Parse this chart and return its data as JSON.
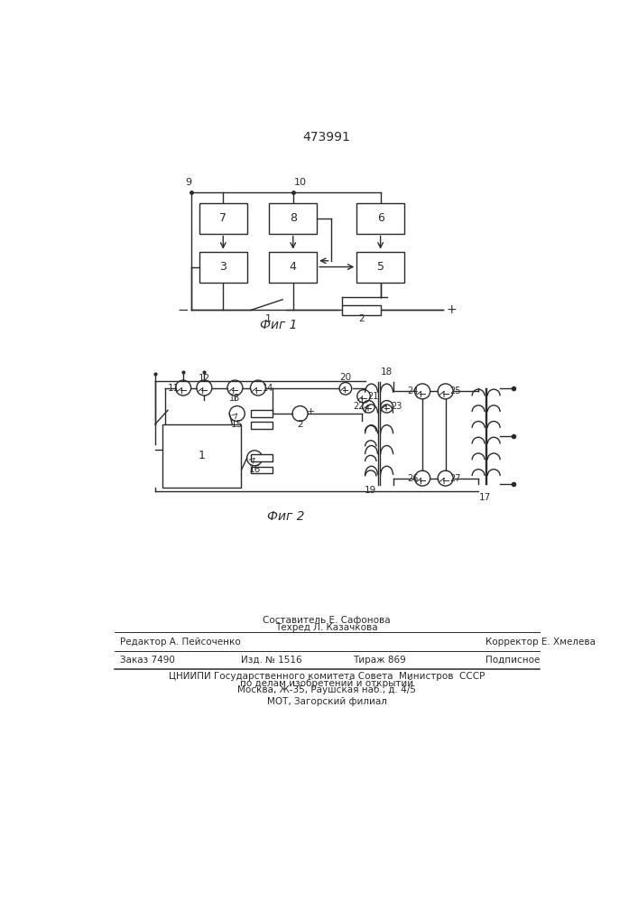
{
  "patent_number": "473991",
  "fig1_caption": "Фиг 1",
  "fig2_caption": "Фиг 2",
  "footer_line1_left": "Редактор А. Пейсоченко",
  "footer_line1_center_top": "Составитель Е. Сафонова",
  "footer_line1_center_bot": "Техред Л. Казачкова",
  "footer_line1_right": "Корректор Е. Хмелева",
  "footer_line2_left": "Заказ 7490",
  "footer_line2_c1": "Изд. № 1516",
  "footer_line2_c2": "Тираж 869",
  "footer_line2_right": "Подписное",
  "footer_line3": "ЦНИИПИ Государственного комитета Совета  Министров  СССР",
  "footer_line4": "по делам изобретений и открытий",
  "footer_line5": "Москва, Ж-35, Раушская наб., д. 4/5",
  "footer_line6": "МОТ, Загорский филиал",
  "bg_color": "#ffffff",
  "line_color": "#2a2a2a"
}
